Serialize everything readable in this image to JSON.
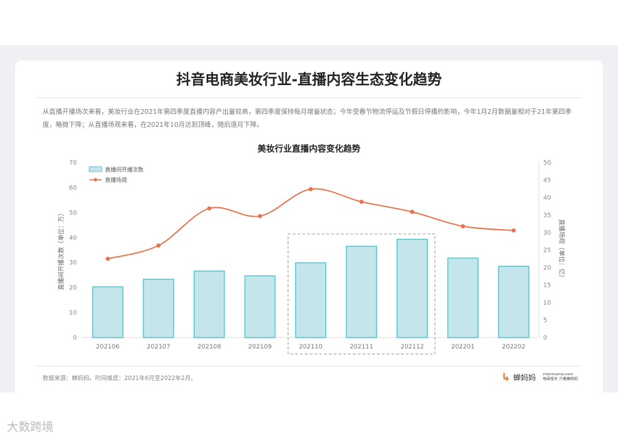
{
  "header": {
    "title": "抖音电商美妆行业-直播内容生态变化趋势"
  },
  "description": "从直播开播场次来看，美妆行业在2021年第四季度直播内容产出量较高，第四季度保持每月增量状态；今年受春节物流停运及节假日停播的影响，今年1月2月数据量相对于21年第四季度，略微下降；从直播场观来看，在2021年10月达到顶峰，随后逐月下降。",
  "chart_data": {
    "type": "bar+line",
    "title": "美妆行业直播内容变化趋势",
    "categories": [
      "202106",
      "202107",
      "202108",
      "202109",
      "202110",
      "202111",
      "202112",
      "202201",
      "202202"
    ],
    "series": [
      {
        "name": "直播间开播次数",
        "type": "bar",
        "axis": "left",
        "color": "#5fc6d0",
        "values": [
          20.3,
          23.3,
          26.6,
          24.7,
          29.9,
          36.5,
          39.3,
          31.8,
          28.5
        ]
      },
      {
        "name": "直播场观",
        "type": "line",
        "axis": "right",
        "color": "#e8704a",
        "values": [
          22.5,
          26.3,
          36.9,
          34.7,
          42.4,
          38.8,
          35.9,
          31.8,
          30.6
        ]
      }
    ],
    "ylabel": "直播间开播次数（单位：万）",
    "y2label": "直播场观（单位：亿）",
    "ylim": [
      0,
      70
    ],
    "yticks": [
      0,
      10,
      20,
      30,
      40,
      50,
      60,
      70
    ],
    "y2lim": [
      0,
      50
    ],
    "y2ticks": [
      0,
      5,
      10,
      15,
      20,
      25,
      30,
      35,
      40,
      45,
      50
    ],
    "legend": "top-left",
    "highlight": [
      "202110",
      "202112"
    ],
    "grid": false
  },
  "footer": {
    "source": "数据来源：蝉妈妈。时间维度：2021年6月至2022年2月。",
    "logo_name": "蝉妈妈",
    "logo_domain": "chanmama.com",
    "logo_slogan": "电商增长  只看蝉妈妈"
  },
  "watermark": "大数跨境"
}
